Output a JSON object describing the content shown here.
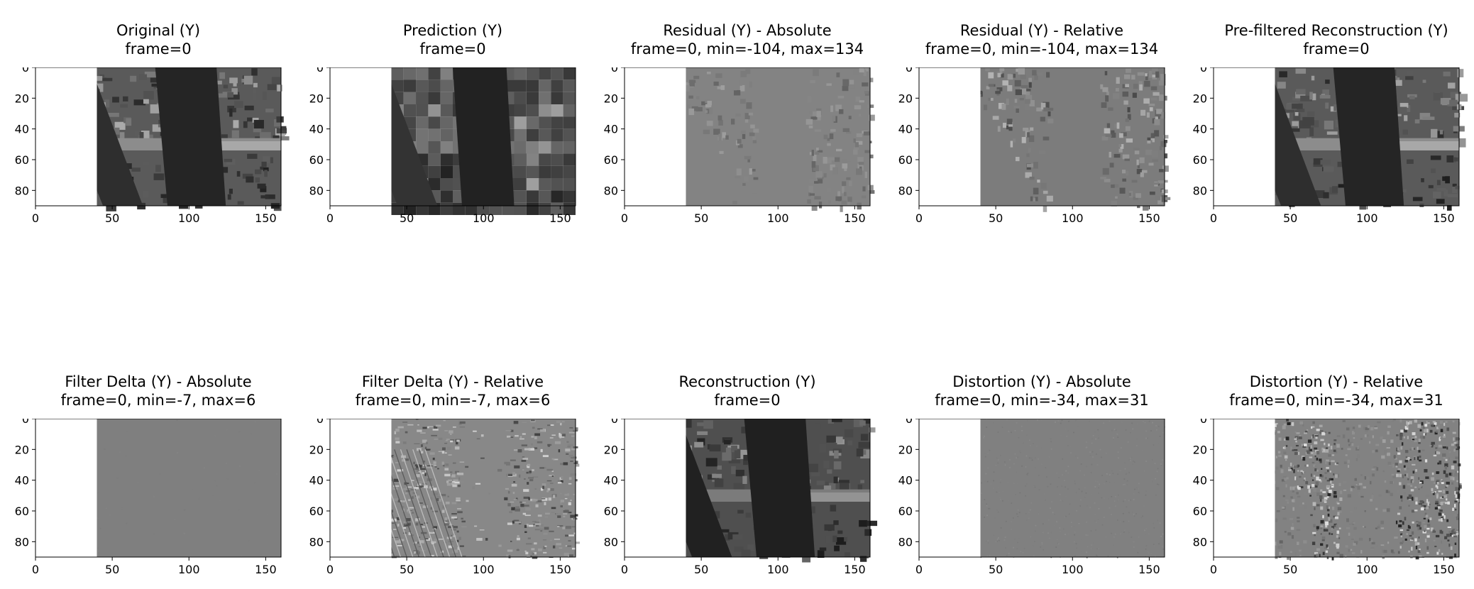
{
  "figure": {
    "background": "#ffffff",
    "colormap": "gray"
  },
  "chart_data": [
    {
      "type": "heatmap",
      "title": "Original (Y)",
      "subtitle": "frame=0",
      "xlim": [
        0,
        160
      ],
      "ylim": [
        90,
        0
      ],
      "x_ticks": [
        0,
        50,
        100,
        150
      ],
      "y_ticks": [
        0,
        20,
        40,
        60,
        80
      ],
      "image": "original",
      "colormap": "gray"
    },
    {
      "type": "heatmap",
      "title": "Prediction (Y)",
      "subtitle": "frame=0",
      "xlim": [
        0,
        160
      ],
      "ylim": [
        90,
        0
      ],
      "x_ticks": [
        0,
        50,
        100,
        150
      ],
      "y_ticks": [
        0,
        20,
        40,
        60,
        80
      ],
      "image": "prediction",
      "colormap": "gray"
    },
    {
      "type": "heatmap",
      "title": "Residual (Y) - Absolute",
      "subtitle": "frame=0, min=-104, max=134",
      "xlim": [
        0,
        160
      ],
      "ylim": [
        90,
        0
      ],
      "x_ticks": [
        0,
        50,
        100,
        150
      ],
      "y_ticks": [
        0,
        20,
        40,
        60,
        80
      ],
      "image": "residual-absolute",
      "colormap": "gray",
      "min": -104,
      "max": 134
    },
    {
      "type": "heatmap",
      "title": "Residual (Y) - Relative",
      "subtitle": "frame=0, min=-104, max=134",
      "xlim": [
        0,
        160
      ],
      "ylim": [
        90,
        0
      ],
      "x_ticks": [
        0,
        50,
        100,
        150
      ],
      "y_ticks": [
        0,
        20,
        40,
        60,
        80
      ],
      "image": "residual-relative",
      "colormap": "gray",
      "min": -104,
      "max": 134
    },
    {
      "type": "heatmap",
      "title": "Pre-filtered Reconstruction (Y)",
      "subtitle": "frame=0",
      "xlim": [
        0,
        160
      ],
      "ylim": [
        90,
        0
      ],
      "x_ticks": [
        0,
        50,
        100,
        150
      ],
      "y_ticks": [
        0,
        20,
        40,
        60,
        80
      ],
      "image": "prefiltered-reconstruction",
      "colormap": "gray"
    },
    {
      "type": "heatmap",
      "title": "Filter Delta (Y) - Absolute",
      "subtitle": "frame=0, min=-7, max=6",
      "xlim": [
        0,
        160
      ],
      "ylim": [
        90,
        0
      ],
      "x_ticks": [
        0,
        50,
        100,
        150
      ],
      "y_ticks": [
        0,
        20,
        40,
        60,
        80
      ],
      "image": "filter-delta-absolute",
      "colormap": "gray",
      "min": -7,
      "max": 6
    },
    {
      "type": "heatmap",
      "title": "Filter Delta (Y) - Relative",
      "subtitle": "frame=0, min=-7, max=6",
      "xlim": [
        0,
        160
      ],
      "ylim": [
        90,
        0
      ],
      "x_ticks": [
        0,
        50,
        100,
        150
      ],
      "y_ticks": [
        0,
        20,
        40,
        60,
        80
      ],
      "image": "filter-delta-relative",
      "colormap": "gray",
      "min": -7,
      "max": 6
    },
    {
      "type": "heatmap",
      "title": "Reconstruction (Y)",
      "subtitle": "frame=0",
      "xlim": [
        0,
        160
      ],
      "ylim": [
        90,
        0
      ],
      "x_ticks": [
        0,
        50,
        100,
        150
      ],
      "y_ticks": [
        0,
        20,
        40,
        60,
        80
      ],
      "image": "reconstruction",
      "colormap": "gray"
    },
    {
      "type": "heatmap",
      "title": "Distortion (Y) - Absolute",
      "subtitle": "frame=0, min=-34, max=31",
      "xlim": [
        0,
        160
      ],
      "ylim": [
        90,
        0
      ],
      "x_ticks": [
        0,
        50,
        100,
        150
      ],
      "y_ticks": [
        0,
        20,
        40,
        60,
        80
      ],
      "image": "distortion-absolute",
      "colormap": "gray",
      "min": -34,
      "max": 31
    },
    {
      "type": "heatmap",
      "title": "Distortion (Y) - Relative",
      "subtitle": "frame=0, min=-34, max=31",
      "xlim": [
        0,
        160
      ],
      "ylim": [
        90,
        0
      ],
      "x_ticks": [
        0,
        50,
        100,
        150
      ],
      "y_ticks": [
        0,
        20,
        40,
        60,
        80
      ],
      "image": "distortion-relative",
      "colormap": "gray",
      "min": -34,
      "max": 31
    }
  ]
}
